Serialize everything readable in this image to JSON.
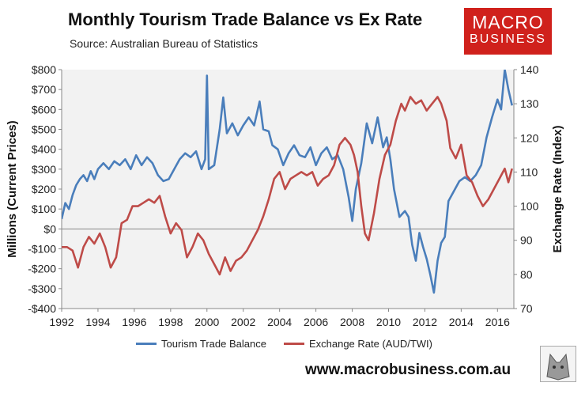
{
  "chart_data": {
    "type": "line",
    "title": "Monthly Tourism Trade Balance vs Ex Rate",
    "source_label": "Source:",
    "source": "Australian Bureau of Statistics",
    "ylabel_left": "Millions (Current Prices)",
    "ylabel_right": "Exchange Rate (Index)",
    "xlim": [
      1992,
      2016.9
    ],
    "ylim_left": [
      -400,
      800
    ],
    "ylim_right": [
      70,
      140
    ],
    "x_ticks": [
      1992,
      1994,
      1996,
      1998,
      2000,
      2002,
      2004,
      2006,
      2008,
      2010,
      2012,
      2014,
      2016
    ],
    "left_tick_labels": [
      "$800",
      "$700",
      "$600",
      "$500",
      "$400",
      "$300",
      "$200",
      "$100",
      "$0",
      "-$100",
      "-$200",
      "-$300",
      "-$400"
    ],
    "left_ticks": [
      800,
      700,
      600,
      500,
      400,
      300,
      200,
      100,
      0,
      -100,
      -200,
      -300,
      -400
    ],
    "right_ticks": [
      140,
      130,
      120,
      110,
      100,
      90,
      80,
      70
    ],
    "series": [
      {
        "name": "Tourism Trade Balance",
        "axis": "left",
        "color": "#4a7ebb",
        "points": [
          [
            1992,
            50
          ],
          [
            1992.2,
            130
          ],
          [
            1992.4,
            100
          ],
          [
            1992.6,
            170
          ],
          [
            1992.8,
            220
          ],
          [
            1993,
            250
          ],
          [
            1993.2,
            270
          ],
          [
            1993.4,
            240
          ],
          [
            1993.6,
            290
          ],
          [
            1993.8,
            250
          ],
          [
            1994,
            300
          ],
          [
            1994.3,
            330
          ],
          [
            1994.6,
            300
          ],
          [
            1994.9,
            340
          ],
          [
            1995.2,
            320
          ],
          [
            1995.5,
            350
          ],
          [
            1995.8,
            300
          ],
          [
            1996.1,
            370
          ],
          [
            1996.4,
            320
          ],
          [
            1996.7,
            360
          ],
          [
            1997,
            330
          ],
          [
            1997.3,
            270
          ],
          [
            1997.6,
            240
          ],
          [
            1997.9,
            250
          ],
          [
            1998.2,
            300
          ],
          [
            1998.5,
            350
          ],
          [
            1998.8,
            380
          ],
          [
            1999.1,
            360
          ],
          [
            1999.4,
            390
          ],
          [
            1999.7,
            300
          ],
          [
            1999.9,
            350
          ],
          [
            2000,
            770
          ],
          [
            2000.1,
            300
          ],
          [
            2000.4,
            320
          ],
          [
            2000.7,
            500
          ],
          [
            2000.9,
            660
          ],
          [
            2001.1,
            480
          ],
          [
            2001.4,
            530
          ],
          [
            2001.7,
            470
          ],
          [
            2002,
            520
          ],
          [
            2002.3,
            560
          ],
          [
            2002.6,
            520
          ],
          [
            2002.9,
            640
          ],
          [
            2003.1,
            500
          ],
          [
            2003.4,
            490
          ],
          [
            2003.6,
            420
          ],
          [
            2003.9,
            400
          ],
          [
            2004.2,
            320
          ],
          [
            2004.5,
            380
          ],
          [
            2004.8,
            420
          ],
          [
            2005.1,
            370
          ],
          [
            2005.4,
            360
          ],
          [
            2005.7,
            410
          ],
          [
            2006,
            320
          ],
          [
            2006.3,
            380
          ],
          [
            2006.6,
            410
          ],
          [
            2006.9,
            350
          ],
          [
            2007.2,
            370
          ],
          [
            2007.5,
            300
          ],
          [
            2007.8,
            160
          ],
          [
            2008,
            40
          ],
          [
            2008.2,
            200
          ],
          [
            2008.5,
            330
          ],
          [
            2008.8,
            530
          ],
          [
            2009.1,
            430
          ],
          [
            2009.4,
            560
          ],
          [
            2009.7,
            410
          ],
          [
            2009.9,
            460
          ],
          [
            2010.1,
            350
          ],
          [
            2010.3,
            200
          ],
          [
            2010.6,
            60
          ],
          [
            2010.9,
            90
          ],
          [
            2011.1,
            60
          ],
          [
            2011.3,
            -80
          ],
          [
            2011.5,
            -160
          ],
          [
            2011.7,
            -20
          ],
          [
            2011.9,
            -90
          ],
          [
            2012.1,
            -150
          ],
          [
            2012.3,
            -230
          ],
          [
            2012.5,
            -320
          ],
          [
            2012.7,
            -160
          ],
          [
            2012.9,
            -70
          ],
          [
            2013.1,
            -40
          ],
          [
            2013.3,
            140
          ],
          [
            2013.6,
            190
          ],
          [
            2013.9,
            240
          ],
          [
            2014.2,
            260
          ],
          [
            2014.5,
            240
          ],
          [
            2014.8,
            270
          ],
          [
            2015.1,
            320
          ],
          [
            2015.4,
            460
          ],
          [
            2015.7,
            560
          ],
          [
            2016,
            650
          ],
          [
            2016.2,
            600
          ],
          [
            2016.4,
            800
          ],
          [
            2016.6,
            700
          ],
          [
            2016.8,
            620
          ]
        ]
      },
      {
        "name": "Exchange Rate (AUD/TWI)",
        "axis": "right",
        "color": "#be4b48",
        "points": [
          [
            1992,
            88
          ],
          [
            1992.3,
            88
          ],
          [
            1992.6,
            87
          ],
          [
            1992.9,
            82
          ],
          [
            1993.2,
            88
          ],
          [
            1993.5,
            91
          ],
          [
            1993.8,
            89
          ],
          [
            1994.1,
            92
          ],
          [
            1994.4,
            88
          ],
          [
            1994.7,
            82
          ],
          [
            1995,
            85
          ],
          [
            1995.3,
            95
          ],
          [
            1995.6,
            96
          ],
          [
            1995.9,
            100
          ],
          [
            1996.2,
            100
          ],
          [
            1996.5,
            101
          ],
          [
            1996.8,
            102
          ],
          [
            1997.1,
            101
          ],
          [
            1997.4,
            103
          ],
          [
            1997.7,
            97
          ],
          [
            1998,
            92
          ],
          [
            1998.3,
            95
          ],
          [
            1998.6,
            93
          ],
          [
            1998.9,
            85
          ],
          [
            1999.2,
            88
          ],
          [
            1999.5,
            92
          ],
          [
            1999.8,
            90
          ],
          [
            2000.1,
            86
          ],
          [
            2000.4,
            83
          ],
          [
            2000.7,
            80
          ],
          [
            2001,
            85
          ],
          [
            2001.3,
            81
          ],
          [
            2001.6,
            84
          ],
          [
            2001.9,
            85
          ],
          [
            2002.2,
            87
          ],
          [
            2002.5,
            90
          ],
          [
            2002.8,
            93
          ],
          [
            2003.1,
            97
          ],
          [
            2003.4,
            102
          ],
          [
            2003.7,
            108
          ],
          [
            2004,
            110
          ],
          [
            2004.3,
            105
          ],
          [
            2004.6,
            108
          ],
          [
            2004.9,
            109
          ],
          [
            2005.2,
            110
          ],
          [
            2005.5,
            109
          ],
          [
            2005.8,
            110
          ],
          [
            2006.1,
            106
          ],
          [
            2006.4,
            108
          ],
          [
            2006.7,
            109
          ],
          [
            2007,
            112
          ],
          [
            2007.3,
            118
          ],
          [
            2007.6,
            120
          ],
          [
            2007.9,
            118
          ],
          [
            2008.1,
            115
          ],
          [
            2008.3,
            110
          ],
          [
            2008.5,
            100
          ],
          [
            2008.7,
            92
          ],
          [
            2008.9,
            90
          ],
          [
            2009.2,
            98
          ],
          [
            2009.5,
            108
          ],
          [
            2009.8,
            115
          ],
          [
            2010.1,
            118
          ],
          [
            2010.4,
            125
          ],
          [
            2010.7,
            130
          ],
          [
            2010.9,
            128
          ],
          [
            2011.2,
            132
          ],
          [
            2011.5,
            130
          ],
          [
            2011.8,
            131
          ],
          [
            2012.1,
            128
          ],
          [
            2012.4,
            130
          ],
          [
            2012.7,
            132
          ],
          [
            2012.9,
            130
          ],
          [
            2013.2,
            125
          ],
          [
            2013.4,
            117
          ],
          [
            2013.7,
            114
          ],
          [
            2014,
            118
          ],
          [
            2014.3,
            109
          ],
          [
            2014.6,
            107
          ],
          [
            2014.9,
            103
          ],
          [
            2015.2,
            100
          ],
          [
            2015.5,
            102
          ],
          [
            2015.8,
            105
          ],
          [
            2016.1,
            108
          ],
          [
            2016.4,
            111
          ],
          [
            2016.6,
            107
          ],
          [
            2016.8,
            111
          ]
        ]
      }
    ],
    "legend": [
      "Tourism Trade Balance",
      "Exchange Rate (AUD/TWI)"
    ]
  },
  "branding": {
    "logo_line1": "MACRO",
    "logo_line2": "BUSINESS",
    "website": "www.macrobusiness.com.au"
  },
  "colors": {
    "plot_bg": "#f2f2f2",
    "accent": "#d0211c"
  }
}
